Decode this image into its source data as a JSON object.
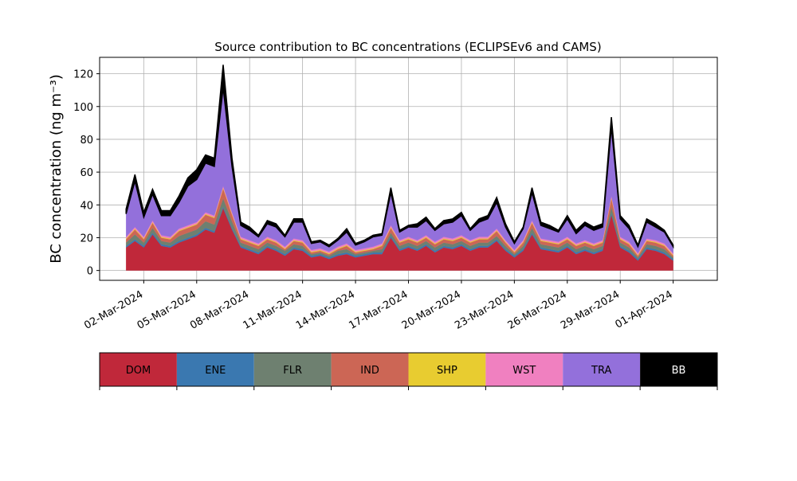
{
  "chart_data": {
    "type": "area",
    "stacked": true,
    "title": "Source contribution to BC concentrations (ECLIPSEv6 and CAMS)",
    "ylabel": "BC concentration (ng m⁻³)",
    "xlabel": "",
    "ylim": [
      -6,
      130
    ],
    "yticks": [
      0,
      20,
      40,
      60,
      80,
      100,
      120
    ],
    "xlim": [
      "2024-02-28T12:00",
      "2024-04-03T12:00"
    ],
    "xticks": [
      "2024-03-02",
      "2024-03-05",
      "2024-03-08",
      "2024-03-11",
      "2024-03-14",
      "2024-03-17",
      "2024-03-20",
      "2024-03-23",
      "2024-03-26",
      "2024-03-29",
      "2024-04-01"
    ],
    "xtick_labels": [
      "02-Mar-2024",
      "05-Mar-2024",
      "08-Mar-2024",
      "11-Mar-2024",
      "14-Mar-2024",
      "17-Mar-2024",
      "20-Mar-2024",
      "23-Mar-2024",
      "26-Mar-2024",
      "29-Mar-2024",
      "01-Apr-2024"
    ],
    "grid": true,
    "legend_placement": "bottom-colorbar",
    "x": [
      "2024-03-01T00:00",
      "2024-03-01T12:00",
      "2024-03-02T00:00",
      "2024-03-02T12:00",
      "2024-03-03T00:00",
      "2024-03-03T12:00",
      "2024-03-04T00:00",
      "2024-03-04T12:00",
      "2024-03-05T00:00",
      "2024-03-05T12:00",
      "2024-03-06T00:00",
      "2024-03-06T12:00",
      "2024-03-07T00:00",
      "2024-03-07T12:00",
      "2024-03-08T00:00",
      "2024-03-08T12:00",
      "2024-03-09T00:00",
      "2024-03-09T12:00",
      "2024-03-10T00:00",
      "2024-03-10T12:00",
      "2024-03-11T00:00",
      "2024-03-11T12:00",
      "2024-03-12T00:00",
      "2024-03-12T12:00",
      "2024-03-13T00:00",
      "2024-03-13T12:00",
      "2024-03-14T00:00",
      "2024-03-14T12:00",
      "2024-03-15T00:00",
      "2024-03-15T12:00",
      "2024-03-16T00:00",
      "2024-03-16T12:00",
      "2024-03-17T00:00",
      "2024-03-17T12:00",
      "2024-03-18T00:00",
      "2024-03-18T12:00",
      "2024-03-19T00:00",
      "2024-03-19T12:00",
      "2024-03-20T00:00",
      "2024-03-20T12:00",
      "2024-03-21T00:00",
      "2024-03-21T12:00",
      "2024-03-22T00:00",
      "2024-03-22T12:00",
      "2024-03-23T00:00",
      "2024-03-23T12:00",
      "2024-03-24T00:00",
      "2024-03-24T12:00",
      "2024-03-25T00:00",
      "2024-03-25T12:00",
      "2024-03-26T00:00",
      "2024-03-26T12:00",
      "2024-03-27T00:00",
      "2024-03-27T12:00",
      "2024-03-28T00:00",
      "2024-03-28T12:00",
      "2024-03-29T00:00",
      "2024-03-29T12:00",
      "2024-03-30T00:00",
      "2024-03-30T12:00",
      "2024-03-31T00:00",
      "2024-03-31T12:00",
      "2024-04-01T00:00"
    ],
    "series": [
      {
        "name": "DOM",
        "color": "#c0283a",
        "values": [
          14,
          18,
          14,
          22,
          15,
          14,
          17,
          19,
          21,
          25,
          23,
          38,
          25,
          14,
          12,
          10,
          14,
          12,
          9,
          13,
          12,
          8,
          9,
          7,
          9,
          10,
          8,
          9,
          10,
          10,
          20,
          12,
          14,
          12,
          15,
          11,
          14,
          13,
          15,
          12,
          14,
          14,
          18,
          12,
          8,
          12,
          22,
          13,
          12,
          11,
          14,
          10,
          12,
          10,
          12,
          34,
          14,
          11,
          6,
          13,
          12,
          10,
          6
        ]
      },
      {
        "name": "ENE",
        "color": "#3a78b0",
        "values": [
          1,
          1,
          1,
          1,
          1,
          1,
          1,
          1,
          1,
          1,
          1,
          1,
          1,
          1,
          1,
          1,
          1,
          1,
          1,
          1,
          1,
          1,
          1,
          1,
          1,
          1,
          1,
          1,
          1,
          1,
          1,
          1,
          1,
          1,
          1,
          1,
          1,
          1,
          1,
          1,
          1,
          1,
          1,
          1,
          1,
          1,
          1,
          1,
          1,
          1,
          1,
          1,
          1,
          1,
          1,
          1,
          1,
          1,
          1,
          1,
          1,
          1,
          1
        ]
      },
      {
        "name": "FLR",
        "color": "#6e8070",
        "values": [
          2,
          3,
          2,
          3,
          2,
          2,
          3,
          3,
          3,
          4,
          4,
          5,
          4,
          2,
          2,
          2,
          2,
          2,
          2,
          2,
          2,
          1,
          1,
          1,
          2,
          2,
          1,
          1,
          1,
          2,
          2,
          2,
          2,
          2,
          2,
          2,
          2,
          2,
          2,
          2,
          2,
          2,
          2,
          2,
          1,
          2,
          3,
          2,
          2,
          2,
          2,
          2,
          2,
          2,
          2,
          4,
          2,
          2,
          1,
          2,
          2,
          2,
          1
        ]
      },
      {
        "name": "IND",
        "color": "#cc6655",
        "values": [
          2,
          3,
          2,
          3,
          2,
          2,
          3,
          3,
          3,
          4,
          4,
          6,
          4,
          2,
          2,
          2,
          2,
          2,
          1,
          2,
          2,
          1,
          1,
          1,
          1,
          2,
          1,
          1,
          1,
          2,
          3,
          2,
          2,
          2,
          2,
          2,
          2,
          2,
          2,
          2,
          2,
          2,
          3,
          2,
          1,
          2,
          3,
          2,
          2,
          2,
          2,
          2,
          2,
          2,
          2,
          5,
          2,
          2,
          1,
          2,
          2,
          2,
          1
        ]
      },
      {
        "name": "SHP",
        "color": "#e8cc30",
        "values": [
          0.5,
          0.5,
          0.5,
          0.5,
          0.5,
          0.5,
          0.5,
          0.5,
          0.5,
          0.5,
          0.5,
          0.5,
          0.5,
          0.5,
          0.5,
          0.5,
          0.5,
          0.5,
          0.5,
          0.5,
          0.5,
          0.5,
          0.5,
          0.5,
          0.5,
          0.5,
          0.5,
          0.5,
          0.5,
          0.5,
          0.5,
          0.5,
          0.5,
          0.5,
          0.5,
          0.5,
          0.5,
          0.5,
          0.5,
          0.5,
          0.5,
          0.5,
          0.5,
          0.5,
          0.5,
          0.5,
          0.5,
          0.5,
          0.5,
          0.5,
          0.5,
          0.5,
          0.5,
          0.5,
          0.5,
          0.5,
          0.5,
          0.5,
          0.5,
          0.5,
          0.5,
          0.5,
          0.5
        ]
      },
      {
        "name": "WST",
        "color": "#f080c0",
        "values": [
          1,
          1,
          1,
          1,
          1,
          1,
          1,
          1,
          1,
          1,
          1,
          1,
          1,
          1,
          1,
          1,
          1,
          1,
          1,
          1,
          1,
          1,
          1,
          1,
          1,
          1,
          1,
          1,
          1,
          1,
          1,
          1,
          1,
          1,
          1,
          1,
          1,
          1,
          1,
          1,
          1,
          1,
          1,
          1,
          1,
          1,
          1,
          1,
          1,
          1,
          1,
          1,
          1,
          1,
          1,
          1,
          1,
          1,
          1,
          1,
          1,
          1,
          1
        ]
      },
      {
        "name": "TRA",
        "color": "#9370db",
        "values": [
          14,
          28,
          12,
          16,
          12,
          13,
          16,
          24,
          26,
          30,
          30,
          60,
          28,
          7,
          6,
          4,
          8,
          8,
          6,
          10,
          11,
          4,
          4,
          3,
          4,
          7,
          3,
          4,
          6,
          5,
          20,
          5,
          6,
          8,
          9,
          7,
          8,
          10,
          12,
          6,
          9,
          11,
          16,
          8,
          4,
          7,
          17,
          8,
          7,
          6,
          11,
          6,
          9,
          8,
          8,
          42,
          11,
          8,
          4,
          10,
          8,
          7,
          4
        ]
      },
      {
        "name": "BB",
        "color": "#000000",
        "values": [
          3,
          4,
          3,
          3,
          3,
          3,
          4,
          5,
          6,
          5,
          5,
          14,
          5,
          2,
          2,
          1,
          2,
          2,
          1,
          2,
          2,
          1,
          1,
          1,
          1,
          2,
          1,
          1,
          1,
          1,
          3,
          1,
          1,
          2,
          2,
          1,
          2,
          2,
          2,
          1,
          2,
          2,
          3,
          2,
          1,
          1,
          3,
          2,
          2,
          1,
          2,
          2,
          2,
          2,
          2,
          6,
          2,
          2,
          1,
          2,
          2,
          1,
          1
        ]
      }
    ]
  }
}
